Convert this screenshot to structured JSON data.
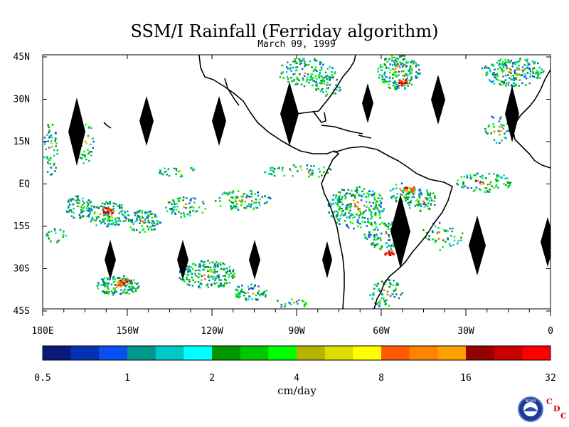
{
  "title": "SSM/I Rainfall (Ferriday algorithm)",
  "subtitle": "March 09, 1999",
  "lat_labels": [
    "45N",
    "30N",
    "15N",
    "EQ",
    "15S",
    "30S",
    "45S"
  ],
  "lon_labels": [
    "180E",
    "150W",
    "120W",
    "90W",
    "60W",
    "30W",
    "0"
  ],
  "colorbar": {
    "colors": [
      "#0a1a7a",
      "#0532b4",
      "#0a50f0",
      "#00968c",
      "#00c8c8",
      "#00ffff",
      "#009600",
      "#00c800",
      "#00ff00",
      "#b4b400",
      "#dcdc00",
      "#ffff00",
      "#ff5a00",
      "#ff8200",
      "#ffa000",
      "#960000",
      "#c80000",
      "#ff0000"
    ],
    "tick_labels": [
      "0.5",
      "1",
      "2",
      "4",
      "8",
      "16",
      "32"
    ],
    "units": "cm/day"
  },
  "logo": {
    "badge_text": "NOAA",
    "letters": [
      "C",
      "D",
      "C"
    ],
    "color": "#cc0000"
  }
}
